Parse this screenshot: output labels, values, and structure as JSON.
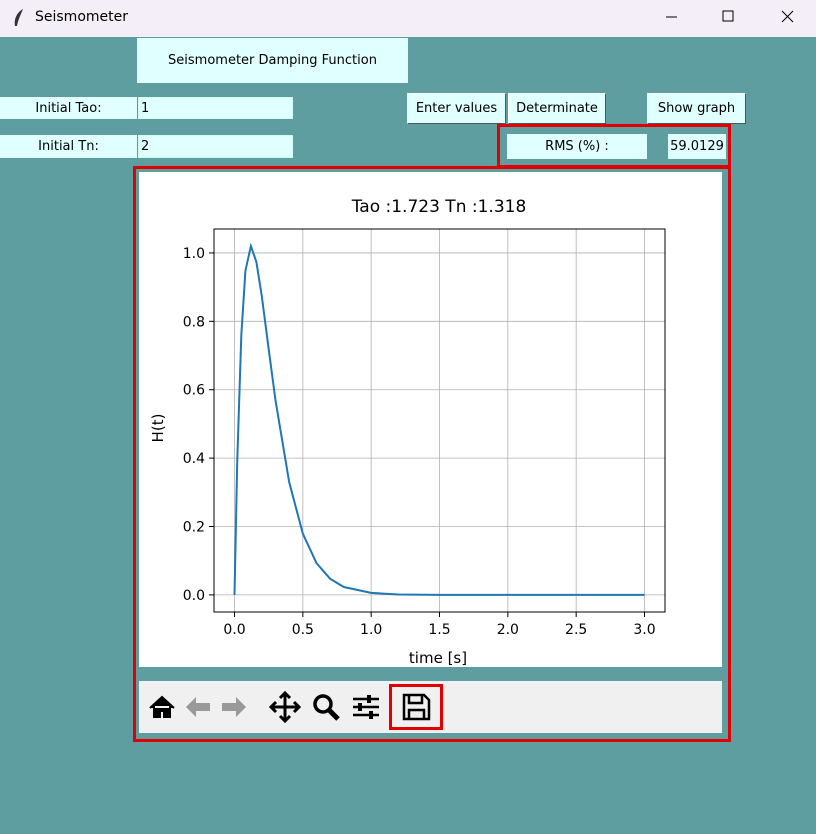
{
  "window": {
    "title": "Seismometer"
  },
  "header": "Seismometer Damping Function",
  "form": {
    "tao_label": "Initial Tao:",
    "tao_value": "1",
    "tn_label": "Initial Tn:",
    "tn_value": "2",
    "buttons": [
      "Enter values",
      "Determinate",
      "Show graph"
    ],
    "rms_label": "RMS (%) :",
    "rms_value": "59.0129"
  },
  "chart_data": {
    "type": "line",
    "title": "Tao :1.723 Tn :1.318",
    "x_label": "time [s]",
    "y_label": "H(t)",
    "x": [
      0,
      0.02,
      0.05,
      0.08,
      0.12,
      0.16,
      0.2,
      0.25,
      0.3,
      0.4,
      0.5,
      0.6,
      0.7,
      0.8,
      1.0,
      1.2,
      1.5,
      2.0,
      2.5,
      3.0
    ],
    "values": [
      0,
      0.391,
      0.761,
      0.948,
      1.02,
      0.974,
      0.873,
      0.719,
      0.569,
      0.33,
      0.179,
      0.093,
      0.047,
      0.023,
      0.006,
      0.001,
      0,
      0,
      0,
      0
    ],
    "color": "#1f77b4",
    "grid": true,
    "xlim": [
      -0.15,
      3.15
    ],
    "ylim": [
      -0.05,
      1.07
    ],
    "xticks": [
      {
        "value": 0,
        "label": "0.0"
      },
      {
        "value": 0.5,
        "label": "0.5"
      },
      {
        "value": 1,
        "label": "1.0"
      },
      {
        "value": 1.5,
        "label": "1.5"
      },
      {
        "value": 2,
        "label": "2.0"
      },
      {
        "value": 2.5,
        "label": "2.5"
      },
      {
        "value": 3,
        "label": "3.0"
      }
    ],
    "yticks": [
      {
        "value": 0,
        "label": "0.0"
      },
      {
        "value": 0.2,
        "label": "0.2"
      },
      {
        "value": 0.4,
        "label": "0.4"
      },
      {
        "value": 0.6,
        "label": "0.6"
      },
      {
        "value": 0.8,
        "label": "0.8"
      },
      {
        "value": 1,
        "label": "1.0"
      }
    ]
  }
}
